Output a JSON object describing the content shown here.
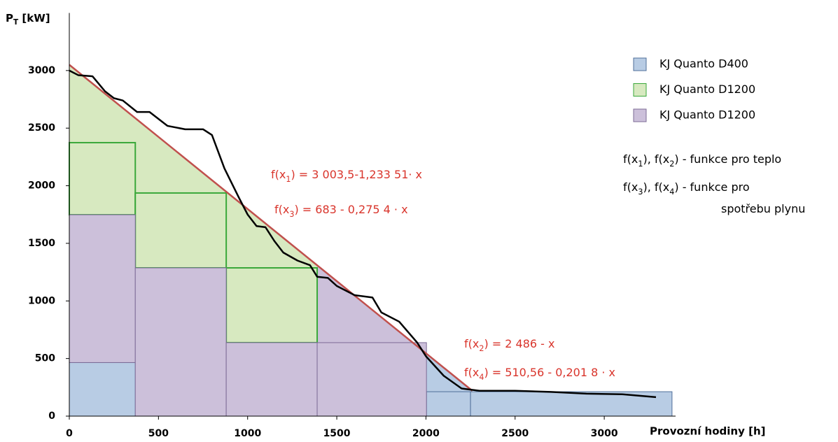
{
  "chart_data": {
    "type": "line",
    "ylabel": [
      {
        "text": "P"
      },
      {
        "sub": "T"
      },
      {
        "text": " [kW]"
      }
    ],
    "xlabel": "Provozní hodiny [h]",
    "xlim": [
      0,
      3400
    ],
    "ylim": [
      0,
      3500
    ],
    "xticks": [
      0,
      500,
      1000,
      1500,
      2000,
      2500,
      3000
    ],
    "yticks": [
      0,
      500,
      1000,
      1500,
      2000,
      2500,
      3000
    ],
    "series": [
      {
        "name": "KJ Quanto D400",
        "color": "#b8cce4",
        "stroke": "#4f6f9a",
        "region": [
          2003,
          2260
        ],
        "blocks": [
          [
            0,
            370,
            0,
            465
          ],
          [
            2003,
            2250,
            0,
            212
          ],
          [
            2250,
            3380,
            0,
            212
          ]
        ]
      },
      {
        "name": "KJ Quanto D1200",
        "color": "#d7e9c0",
        "stroke": "#3aa83a",
        "region": [
          0,
          1390
        ],
        "blocks": [
          [
            0,
            370,
            1748,
            2374
          ],
          [
            370,
            880,
            1287,
            1937
          ],
          [
            880,
            1390,
            638,
            1287
          ]
        ]
      },
      {
        "name": "KJ Quanto D1200",
        "color": "#ccc0da",
        "stroke": "#7d6b96",
        "region": [
          1390,
          2003
        ],
        "blocks": [
          [
            0,
            370,
            465,
            1748
          ],
          [
            370,
            880,
            0,
            1287
          ],
          [
            880,
            1390,
            0,
            638
          ],
          [
            1390,
            2003,
            0,
            638
          ]
        ]
      }
    ],
    "trend": {
      "color": "#c0504d",
      "x": [
        0,
        2260
      ],
      "y": [
        3050,
        220
      ]
    },
    "curve": {
      "color": "#000000",
      "x": [
        0,
        50,
        130,
        200,
        250,
        300,
        380,
        450,
        550,
        650,
        750,
        800,
        870,
        950,
        1000,
        1050,
        1100,
        1150,
        1200,
        1280,
        1350,
        1390,
        1450,
        1500,
        1600,
        1700,
        1750,
        1850,
        1950,
        2000,
        2100,
        2200,
        2300,
        2500,
        2700,
        2900,
        3100,
        3250,
        3290
      ],
      "y": [
        3000,
        2960,
        2950,
        2820,
        2760,
        2740,
        2640,
        2640,
        2520,
        2490,
        2490,
        2440,
        2150,
        1900,
        1750,
        1650,
        1640,
        1520,
        1420,
        1350,
        1310,
        1210,
        1200,
        1130,
        1050,
        1030,
        900,
        820,
        640,
        520,
        350,
        240,
        220,
        220,
        210,
        195,
        190,
        170,
        165
      ]
    },
    "annotations": [
      [
        {
          "text": "f(x"
        },
        {
          "sub": "1"
        },
        {
          "text": ") = 3 003,5-1,233 51· x"
        }
      ],
      [
        {
          "text": "f(x"
        },
        {
          "sub": "3"
        },
        {
          "text": ") = 683 - 0,275 4 · x"
        }
      ],
      [
        {
          "text": "f(x"
        },
        {
          "sub": "2"
        },
        {
          "text": ") = 2 486 - x"
        }
      ],
      [
        {
          "text": "f(x"
        },
        {
          "sub": "4"
        },
        {
          "text": ") = 510,56 - 0,201 8 · x"
        }
      ]
    ],
    "notes": [
      [
        {
          "text": "f(x"
        },
        {
          "sub": "1"
        },
        {
          "text": "), f(x"
        },
        {
          "sub": "2"
        },
        {
          "text": ")  - funkce pro teplo"
        }
      ],
      [
        {
          "text": "f(x"
        },
        {
          "sub": "3"
        },
        {
          "text": "), f(x"
        },
        {
          "sub": "4"
        },
        {
          "text": ")  - funkce pro"
        }
      ],
      [
        {
          "text": "spotřebu  plynu"
        }
      ]
    ]
  }
}
